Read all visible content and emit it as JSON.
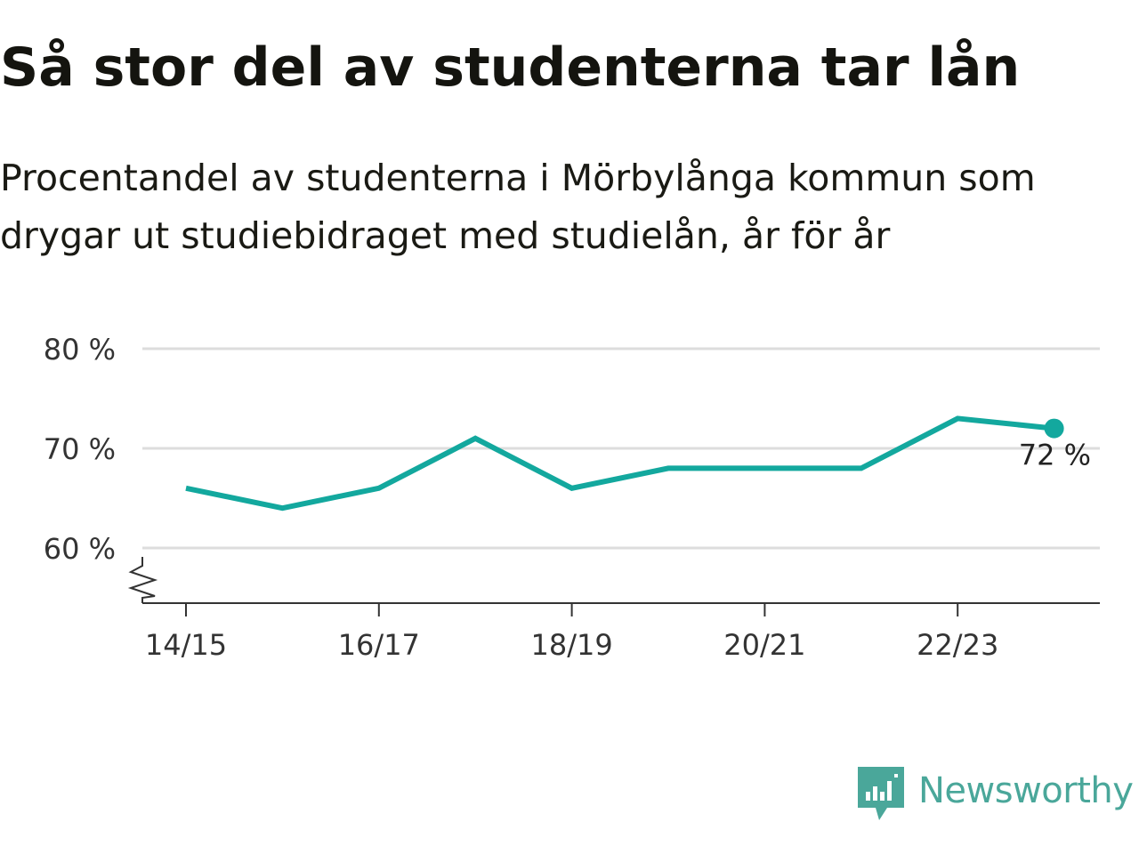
{
  "title": "Så stor del av studenterna tar lån",
  "subtitle": "Procentandel av studenterna i Mörbylånga kommun som drygar ut studiebidraget med studielån, år för år",
  "brand": {
    "name": "Newsworthy",
    "icon": "newsworthy-logo-icon",
    "color": "#4aa79a"
  },
  "colors": {
    "line": "#13a89e",
    "grid": "#dddddd",
    "axis": "#333333"
  },
  "chart_data": {
    "type": "line",
    "title": "Så stor del av studenterna tar lån",
    "subtitle": "Procentandel av studenterna i Mörbylånga kommun som drygar ut studiebidraget med studielån, år för år",
    "x": [
      "14/15",
      "15/16",
      "16/17",
      "17/18",
      "18/19",
      "19/20",
      "20/21",
      "21/22",
      "22/23",
      "23/24"
    ],
    "series": [
      {
        "values": [
          66,
          64,
          66,
          71,
          66,
          68,
          68,
          68,
          73,
          72
        ]
      }
    ],
    "x_tick_labels": [
      "14/15",
      "16/17",
      "18/19",
      "20/21",
      "22/23"
    ],
    "y_ticks": [
      60,
      70,
      80
    ],
    "y_tick_labels": [
      "60 %",
      "70 %",
      "80 %"
    ],
    "ylim": [
      54.5,
      80
    ],
    "y_axis_break": true,
    "last_value_label": "72 %",
    "grid": true,
    "legend": "none"
  }
}
